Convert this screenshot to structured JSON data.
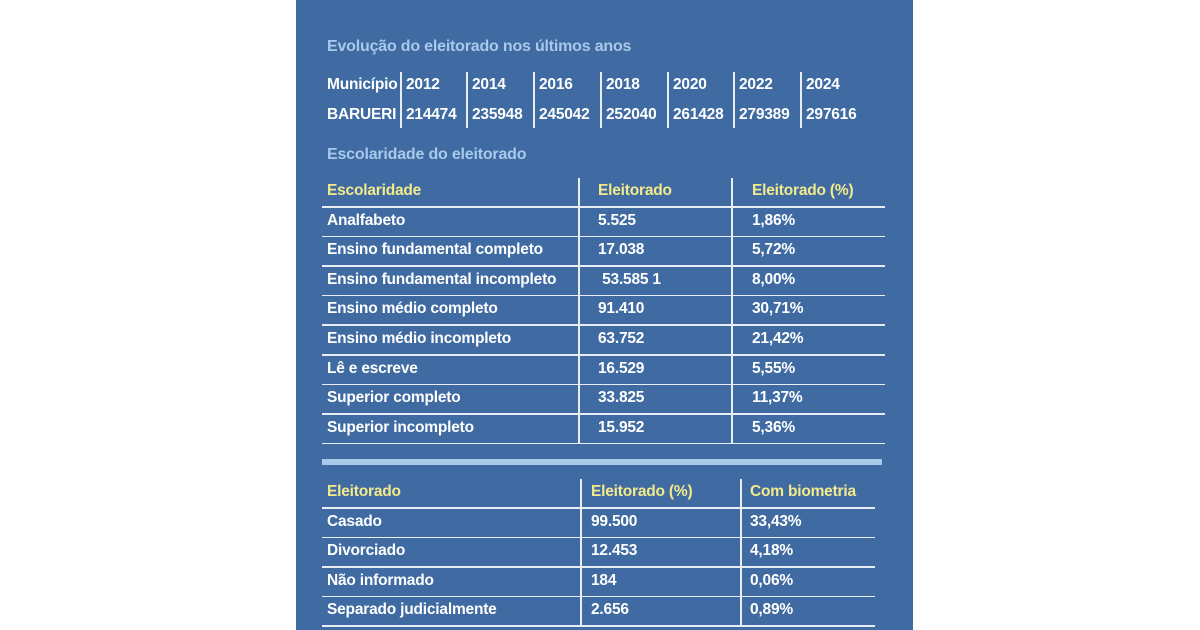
{
  "title1": "Evolução do eleitorado nos últimos anos",
  "table1": {
    "header": [
      "Município",
      "2012",
      "2014",
      "2016",
      "2018",
      "2020",
      "2022",
      "2024"
    ],
    "rows": [
      [
        "BARUERI",
        "214474",
        "235948",
        "245042",
        "252040",
        "261428",
        "279389",
        "297616"
      ]
    ]
  },
  "title2": "Escolaridade do eleitorado",
  "table2": {
    "header": [
      "Escolaridade",
      "Eleitorado",
      "Eleitorado (%)"
    ],
    "rows": [
      [
        "Analfabeto",
        "5.525",
        "1,86%"
      ],
      [
        "Ensino fundamental completo",
        "17.038",
        "5,72%"
      ],
      [
        "Ensino fundamental incompleto",
        " 53.585 1",
        "8,00%"
      ],
      [
        "Ensino médio completo",
        "91.410",
        "30,71%"
      ],
      [
        "Ensino médio incompleto",
        "63.752",
        "21,42%"
      ],
      [
        "Lê e escreve",
        "16.529",
        "5,55%"
      ],
      [
        "Superior completo",
        "33.825",
        "11,37%"
      ],
      [
        "Superior incompleto",
        "15.952",
        "5,36%"
      ]
    ]
  },
  "table3": {
    "header": [
      "Eleitorado",
      "Eleitorado (%)",
      "Com biometria"
    ],
    "rows": [
      [
        "Casado",
        "99.500",
        "33,43%"
      ],
      [
        "Divorciado",
        "12.453",
        "4,18%"
      ],
      [
        "Não informado",
        "184",
        "0,06%"
      ],
      [
        "Separado judicialmente",
        "2.656",
        "0,89%"
      ]
    ]
  }
}
